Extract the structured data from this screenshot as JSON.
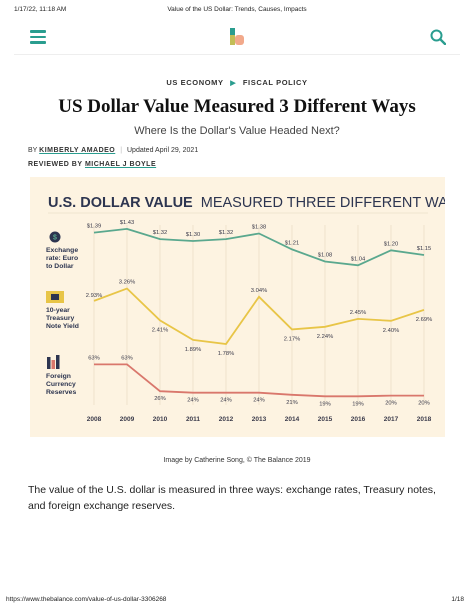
{
  "print_header": {
    "datetime": "1/17/22, 11:18 AM",
    "doc_title": "Value of the US Dollar: Trends, Causes, Impacts"
  },
  "nav": {
    "menu_icon": "hamburger-menu-icon",
    "logo_icon": "the-balance-logo-icon",
    "search_icon": "search-icon",
    "accent_color": "#2a9d8f"
  },
  "breadcrumb": {
    "items": [
      "US ECONOMY",
      "FISCAL POLICY"
    ],
    "separator_icon": "triangle-right-icon"
  },
  "article": {
    "title": "US Dollar Value Measured 3 Different Ways",
    "subtitle": "Where Is the Dollar's Value Headed Next?",
    "by_prefix": "BY",
    "author": "KIMBERLY AMADEO",
    "updated": "Updated April 29, 2021",
    "reviewed_prefix": "REVIEWED BY",
    "reviewer": "MICHAEL J BOYLE",
    "image_caption": "Image by Catherine Song, © The Balance 2019",
    "body": "The value of the U.S. dollar is measured in three ways: exchange rates, Treasury notes, and foreign exchange reserves."
  },
  "chart_data": {
    "type": "line",
    "title_bold": "U.S. DOLLAR VALUE",
    "title_rest": "MEASURED THREE DIFFERENT WAYS",
    "x": [
      "2008",
      "2009",
      "2010",
      "2011",
      "2012",
      "2013",
      "2014",
      "2015",
      "2016",
      "2017",
      "2018"
    ],
    "series": [
      {
        "name": "Exchange rate: Euro to Dollar",
        "label_lines": [
          "Exchange",
          "rate: Euro",
          "to Dollar"
        ],
        "icon": "dollar-coin-icon",
        "color": "#5aa88e",
        "values": [
          1.39,
          1.43,
          1.32,
          1.3,
          1.32,
          1.38,
          1.21,
          1.08,
          1.04,
          1.2,
          1.15
        ],
        "labels": [
          "$1.39",
          "$1.43",
          "$1.32",
          "$1.30",
          "$1.32",
          "$1.38",
          "$1.21",
          "$1.08",
          "$1.04",
          "$1.20",
          "$1.15"
        ]
      },
      {
        "name": "10-year Treasury Note Yield",
        "label_lines": [
          "10-year",
          "Treasury",
          "Note Yield"
        ],
        "icon": "treasury-note-icon",
        "color": "#e8c547",
        "values": [
          2.93,
          3.26,
          2.41,
          1.89,
          1.78,
          3.04,
          2.17,
          2.24,
          2.45,
          2.4,
          2.69
        ],
        "labels": [
          "2.93%",
          "3.26%",
          "2.41%",
          "1.89%",
          "1.78%",
          "3.04%",
          "2.17%",
          "2.24%",
          "2.45%",
          "2.40%",
          "2.69%"
        ]
      },
      {
        "name": "Foreign Currency Reserves",
        "label_lines": [
          "Foreign",
          "Currency",
          "Reserves"
        ],
        "icon": "bar-chart-icon",
        "color": "#d9776c",
        "values": [
          63,
          63,
          26,
          24,
          24,
          24,
          21,
          19,
          19,
          20,
          20
        ],
        "labels": [
          "63%",
          "63%",
          "26%",
          "24%",
          "24%",
          "24%",
          "21%",
          "19%",
          "19%",
          "20%",
          "20%"
        ]
      }
    ]
  },
  "print_footer": {
    "url": "https://www.thebalance.com/value-of-us-dollar-3306268",
    "page": "1/18"
  }
}
